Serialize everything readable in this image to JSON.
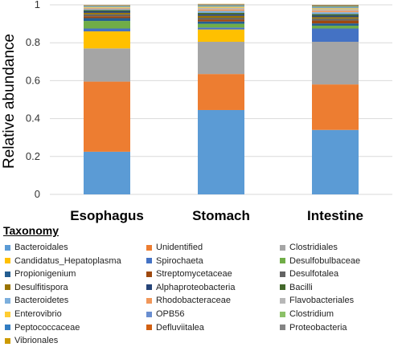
{
  "chart_data": {
    "type": "bar",
    "stacked": true,
    "ylabel": "Relative abundance",
    "ylim": [
      0,
      1
    ],
    "yticks": [
      "0",
      "0.2",
      "0.4",
      "0.6",
      "0.8",
      "1"
    ],
    "categories": [
      "Esophagus",
      "Stomach",
      "Intestine"
    ],
    "legend_title": "Taxonomy",
    "legend_placement": "bottom",
    "series": [
      {
        "name": "Bacteroidales",
        "color": "#5b9bd5",
        "values": [
          0.225,
          0.445,
          0.34
        ]
      },
      {
        "name": "Unidentified",
        "color": "#ed7d31",
        "values": [
          0.37,
          0.19,
          0.24
        ]
      },
      {
        "name": "Clostridiales",
        "color": "#a5a5a5",
        "values": [
          0.175,
          0.17,
          0.225
        ]
      },
      {
        "name": "Candidatus_Hepatoplasma",
        "color": "#ffc000",
        "values": [
          0.09,
          0.065,
          0.0
        ]
      },
      {
        "name": "Spirochaeta",
        "color": "#4472c4",
        "values": [
          0.015,
          0.01,
          0.07
        ]
      },
      {
        "name": "Desulfobulbaceae",
        "color": "#70ad47",
        "values": [
          0.04,
          0.02,
          0.015
        ]
      },
      {
        "name": "Propionigenium",
        "color": "#255e91",
        "values": [
          0.015,
          0.012,
          0.012
        ]
      },
      {
        "name": "Streptomycetaceae",
        "color": "#9e480e",
        "values": [
          0.01,
          0.01,
          0.015
        ]
      },
      {
        "name": "Desulfotalea",
        "color": "#636363",
        "values": [
          0.01,
          0.01,
          0.01
        ]
      },
      {
        "name": "Desulfitispora",
        "color": "#997300",
        "values": [
          0.008,
          0.01,
          0.008
        ]
      },
      {
        "name": "Alphaproteobacteria",
        "color": "#264478",
        "values": [
          0.008,
          0.008,
          0.008
        ]
      },
      {
        "name": "Bacilli",
        "color": "#43682b",
        "values": [
          0.006,
          0.008,
          0.008
        ]
      },
      {
        "name": "Bacteroidetes",
        "color": "#7cafdd",
        "values": [
          0.005,
          0.01,
          0.01
        ]
      },
      {
        "name": "Rhodobacteraceae",
        "color": "#f1975a",
        "values": [
          0.004,
          0.008,
          0.008
        ]
      },
      {
        "name": "Flavobacteriales",
        "color": "#b7b7b7",
        "values": [
          0.003,
          0.008,
          0.008
        ]
      },
      {
        "name": "Enterovibrio",
        "color": "#ffcd33",
        "values": [
          0.003,
          0.005,
          0.005
        ]
      },
      {
        "name": "OPB56",
        "color": "#698ed0",
        "values": [
          0.003,
          0.004,
          0.005
        ]
      },
      {
        "name": "Clostridium",
        "color": "#8cc168",
        "values": [
          0.003,
          0.003,
          0.004
        ]
      },
      {
        "name": "Peptococcaceae",
        "color": "#327dc2",
        "values": [
          0.002,
          0.003,
          0.003
        ]
      },
      {
        "name": "Defluviitalea",
        "color": "#d26012",
        "values": [
          0.002,
          0.002,
          0.002
        ]
      },
      {
        "name": "Proteobacteria",
        "color": "#848484",
        "values": [
          0.002,
          0.002,
          0.002
        ]
      },
      {
        "name": "Vibrionales",
        "color": "#cc9a00",
        "values": [
          0.001,
          0.002,
          0.002
        ]
      }
    ]
  }
}
